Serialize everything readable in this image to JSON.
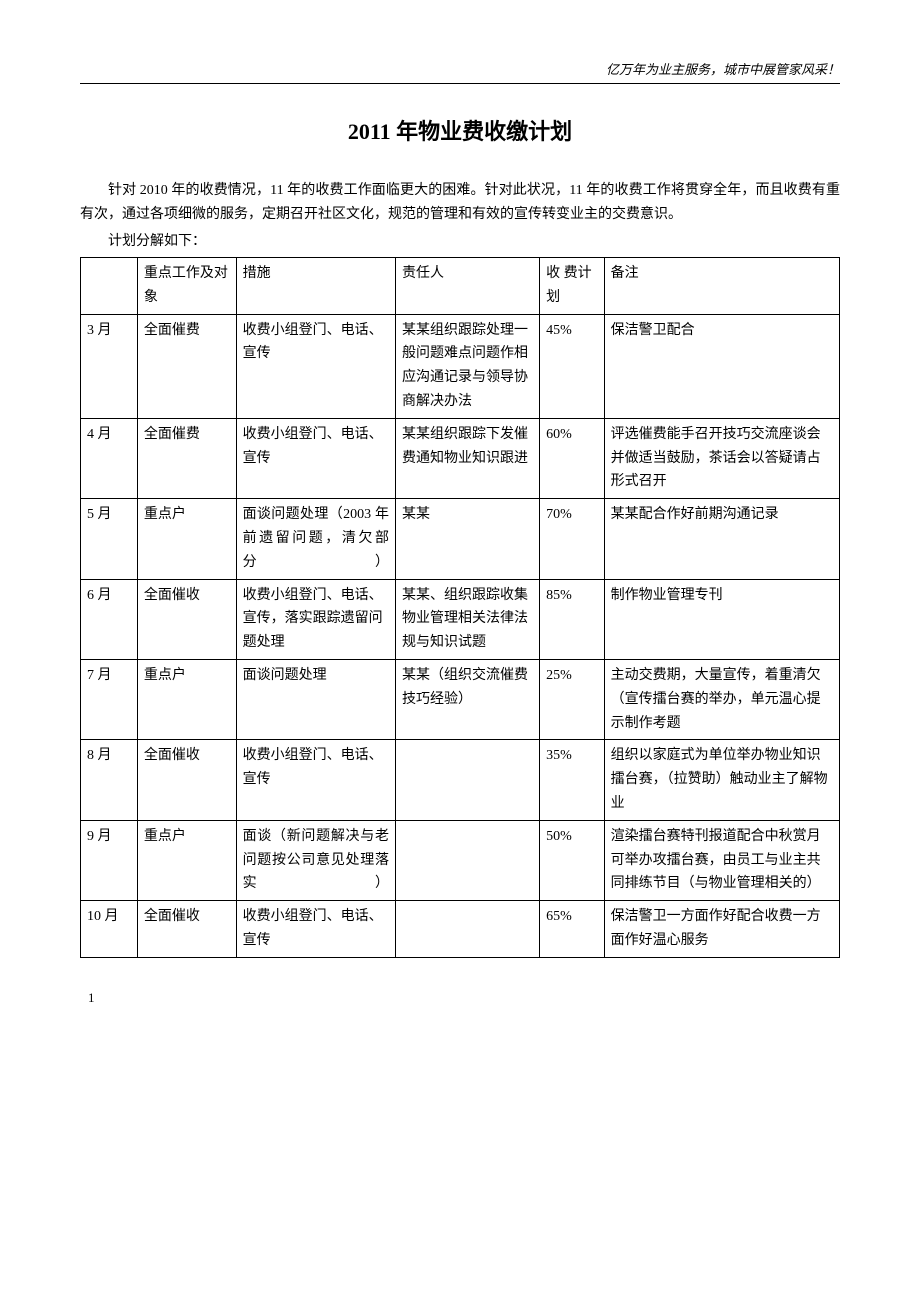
{
  "header_slogan": "亿万年为业主服务，城市中展管家风采！",
  "title": "2011 年物业费收缴计划",
  "intro": "针对 2010 年的收费情况，11 年的收费工作面临更大的困难。针对此状况，11 年的收费工作将贯穿全年，而且收费有重有次，通过各项细微的服务，定期召开社区文化，规范的管理和有效的宣传转变业主的交费意识。",
  "subhead": "计划分解如下：",
  "columns": [
    "",
    "重点工作及对象",
    "措施",
    "责任人",
    "收 费计划",
    "备注"
  ],
  "col_header_month": "",
  "rows": [
    {
      "month": "3 月",
      "focus": "全面催费",
      "measure": "收费小组登门、电话、宣传",
      "responsible": "某某组织跟踪处理一般问题难点问题作相应沟通记录与领导协商解决办法",
      "plan": "45%",
      "note": "保洁警卫配合"
    },
    {
      "month": "4 月",
      "focus": "全面催费",
      "measure": "收费小组登门、电话、宣传",
      "responsible": "某某组织跟踪下发催费通知物业知识跟进",
      "plan": "60%",
      "note": "评选催费能手召开技巧交流座谈会并做适当鼓励，茶话会以答疑请占形式召开"
    },
    {
      "month": "5 月",
      "focus": "重点户",
      "measure": "面谈问题处理（2003 年前遗留问题，清欠部分）",
      "measure_justify": true,
      "responsible": "某某",
      "plan": "70%",
      "note": "某某配合作好前期沟通记录"
    },
    {
      "month": "6 月",
      "focus": "全面催收",
      "measure": "收费小组登门、电话、宣传，落实跟踪遗留问题处理",
      "responsible": "某某、组织跟踪收集物业管理相关法律法规与知识试题",
      "plan": "85%",
      "note": "制作物业管理专刊"
    },
    {
      "month": "7 月",
      "focus": "重点户",
      "measure": "面谈问题处理",
      "responsible": "某某（组织交流催费 技巧经验）",
      "plan": "25%",
      "note": "主动交费期，大量宣传，着重清欠（宣传擂台赛的举办，单元温心提示制作考题"
    },
    {
      "month": "8 月",
      "focus": "全面催收",
      "measure": "收费小组登门、电话、宣传",
      "responsible": "",
      "plan": "35%",
      "note": "组织以家庭式为单位举办物业知识擂台赛，（拉赞助）触动业主了解物业"
    },
    {
      "month": "9 月",
      "focus": "重点户",
      "measure": "面谈（新问题解决与老问题按公司意见处理落实）",
      "measure_justify": true,
      "responsible": "",
      "plan": "50%",
      "note": "渲染擂台赛特刊报道配合中秋赏月可举办攻擂台赛，由员工与业主共同排练节目（与物业管理相关的）"
    },
    {
      "month": "10 月",
      "focus": "全面催收",
      "measure": "收费小组登门、电话、宣传",
      "responsible": "",
      "plan": "65%",
      "note": "保洁警卫一方面作好配合收费一方面作好温心服务"
    }
  ],
  "page_number": "1",
  "colors": {
    "text": "#000000",
    "background": "#ffffff",
    "border": "#000000"
  }
}
